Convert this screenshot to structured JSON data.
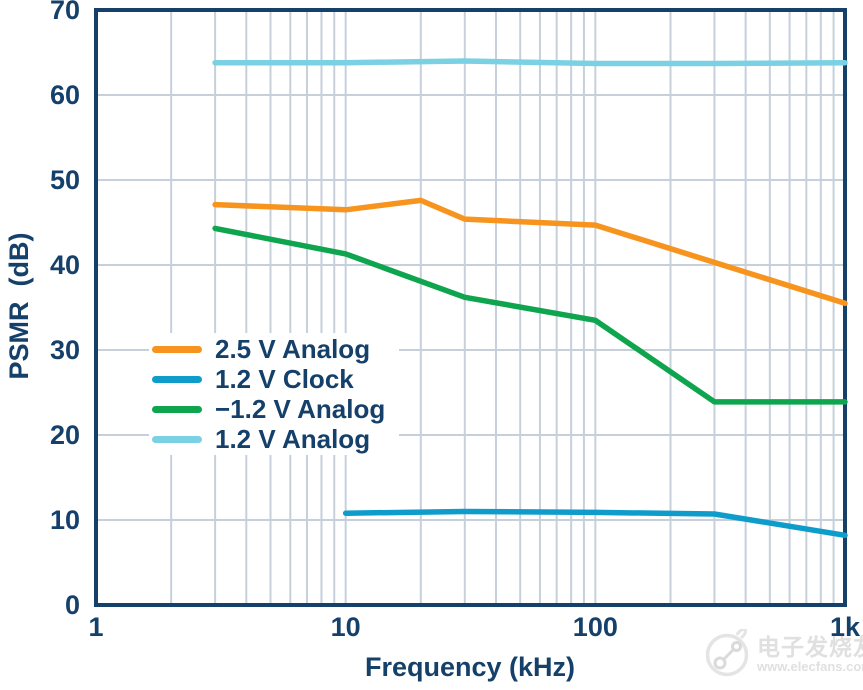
{
  "chart_data": {
    "type": "line",
    "title": "",
    "xlabel": "Frequency (kHz)",
    "ylabel": "PSMR  (dB)",
    "x_scale": "log",
    "xlim": [
      1,
      1000
    ],
    "ylim": [
      0,
      70
    ],
    "grid": true,
    "legend_position": "inside-middle-left",
    "x_ticks": [
      {
        "value": 1,
        "label": "1"
      },
      {
        "value": 10,
        "label": "10"
      },
      {
        "value": 100,
        "label": "100"
      },
      {
        "value": 1000,
        "label": "1k"
      }
    ],
    "y_ticks": [
      {
        "value": 0,
        "label": "0"
      },
      {
        "value": 10,
        "label": "10"
      },
      {
        "value": 20,
        "label": "20"
      },
      {
        "value": 30,
        "label": "30"
      },
      {
        "value": 40,
        "label": "40"
      },
      {
        "value": 50,
        "label": "50"
      },
      {
        "value": 60,
        "label": "60"
      },
      {
        "value": 70,
        "label": "70"
      }
    ],
    "series": [
      {
        "name": "2.5 V Analog",
        "color": "#F7941E",
        "points": [
          [
            3,
            47.1
          ],
          [
            10,
            46.5
          ],
          [
            20,
            47.6
          ],
          [
            30,
            45.4
          ],
          [
            100,
            44.7
          ],
          [
            1000,
            35.5
          ]
        ]
      },
      {
        "name": "1.2 V Clock",
        "color": "#0E9DCB",
        "points": [
          [
            10,
            10.8
          ],
          [
            30,
            11.0
          ],
          [
            100,
            10.9
          ],
          [
            300,
            10.7
          ],
          [
            1000,
            8.2
          ]
        ]
      },
      {
        "name": "−1.2 V Analog",
        "color": "#0FA44E",
        "points": [
          [
            3,
            44.3
          ],
          [
            10,
            41.3
          ],
          [
            30,
            36.2
          ],
          [
            100,
            33.5
          ],
          [
            300,
            23.9
          ],
          [
            1000,
            23.9
          ]
        ]
      },
      {
        "name": "1.2 V Analog",
        "color": "#7BD1E4",
        "points": [
          [
            3,
            63.8
          ],
          [
            10,
            63.8
          ],
          [
            30,
            64.0
          ],
          [
            100,
            63.7
          ],
          [
            300,
            63.7
          ],
          [
            1000,
            63.8
          ]
        ]
      }
    ]
  },
  "colors": {
    "axis_text": "#15406A",
    "plot_border": "#15406A",
    "gridline": "#C6D0DB",
    "background": "#FFFFFF",
    "watermark_gray": "#E0E0E0"
  },
  "watermark": {
    "brand": "电子发烧友",
    "url": "www.elecfans.com"
  }
}
